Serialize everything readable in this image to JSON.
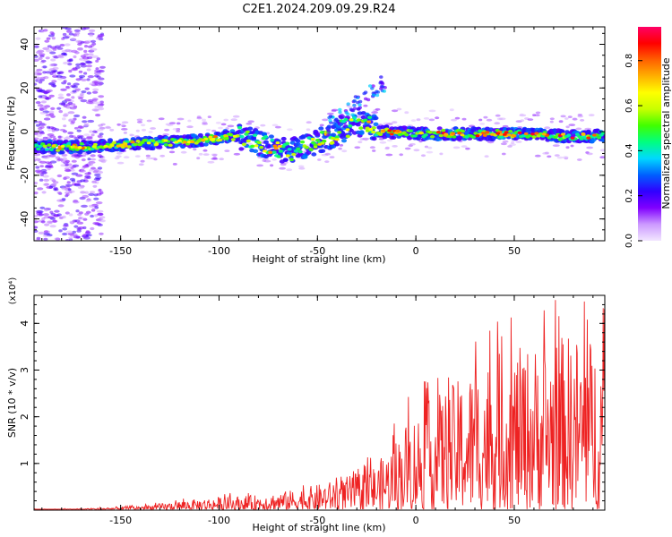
{
  "title": "C2E1.2024.209.09.29.R24",
  "chart_data": [
    {
      "type": "heatmap",
      "xlabel": "Height of straight line (km)",
      "ylabel": "Frequency (Hz)",
      "xlim": [
        -194,
        96
      ],
      "ylim": [
        -50,
        48
      ],
      "xticks": [
        -150,
        -100,
        -50,
        0,
        50
      ],
      "yticks": [
        -40,
        -20,
        0,
        20,
        40
      ],
      "colorbar": {
        "label": "Normalized spectral amplitude",
        "range": [
          0,
          0.95
        ],
        "ticks": [
          "0.0",
          "0.2",
          "0.4",
          "0.6",
          "0.8"
        ],
        "tick_values": [
          0,
          0.2,
          0.4,
          0.6,
          0.8
        ],
        "colormap": [
          "#f2e6ff",
          "#cc99ff",
          "#8000ff",
          "#3000ff",
          "#0060ff",
          "#00d8ff",
          "#00ff80",
          "#40ff00",
          "#c8ff00",
          "#ffff00",
          "#ffb000",
          "#ff6000",
          "#ff0000",
          "#ff0066"
        ]
      },
      "ridge": [
        {
          "x": -194,
          "y": -7
        },
        {
          "x": -170,
          "y": -7
        },
        {
          "x": -150,
          "y": -6
        },
        {
          "x": -130,
          "y": -5
        },
        {
          "x": -110,
          "y": -4
        },
        {
          "x": -95,
          "y": -2
        },
        {
          "x": -85,
          "y": -3
        },
        {
          "x": -75,
          "y": -7
        },
        {
          "x": -65,
          "y": -9
        },
        {
          "x": -55,
          "y": -6
        },
        {
          "x": -45,
          "y": -3
        },
        {
          "x": -35,
          "y": 2
        },
        {
          "x": -25,
          "y": 4
        },
        {
          "x": -18,
          "y": 0
        },
        {
          "x": 0,
          "y": -1
        },
        {
          "x": 25,
          "y": -1
        },
        {
          "x": 50,
          "y": -1
        },
        {
          "x": 75,
          "y": -2
        },
        {
          "x": 96,
          "y": -2
        }
      ]
    },
    {
      "type": "line",
      "xlabel": "Height of straight line (km)",
      "ylabel": "SNR (10 * v/v)",
      "scale_note": "(x10⁴)",
      "xlim": [
        -194,
        96
      ],
      "ylim": [
        0,
        4.6
      ],
      "xticks": [
        -150,
        -100,
        -50,
        0,
        50
      ],
      "yticks": [
        1,
        2,
        3,
        4
      ],
      "series": [
        {
          "color": "#ee2222",
          "envelope_x": [
            -194,
            -175,
            -160,
            -150,
            -140,
            -130,
            -120,
            -110,
            -100,
            -90,
            -80,
            -70,
            -60,
            -50,
            -40,
            -30,
            -20,
            -15,
            -10,
            -5,
            0,
            5,
            10,
            15,
            20,
            25,
            30,
            35,
            40,
            45,
            50,
            55,
            60,
            65,
            70,
            75,
            80,
            85,
            90,
            96
          ],
          "envelope_y": [
            0.03,
            0.03,
            0.05,
            0.08,
            0.1,
            0.14,
            0.2,
            0.24,
            0.28,
            0.3,
            0.33,
            0.38,
            0.45,
            0.55,
            0.65,
            0.8,
            1.0,
            1.25,
            1.55,
            1.9,
            2.1,
            2.3,
            2.45,
            2.6,
            2.75,
            2.9,
            3.1,
            3.25,
            3.35,
            3.4,
            3.45,
            3.5,
            3.55,
            3.6,
            3.7,
            3.75,
            3.8,
            3.75,
            3.7,
            3.6
          ]
        }
      ]
    }
  ]
}
